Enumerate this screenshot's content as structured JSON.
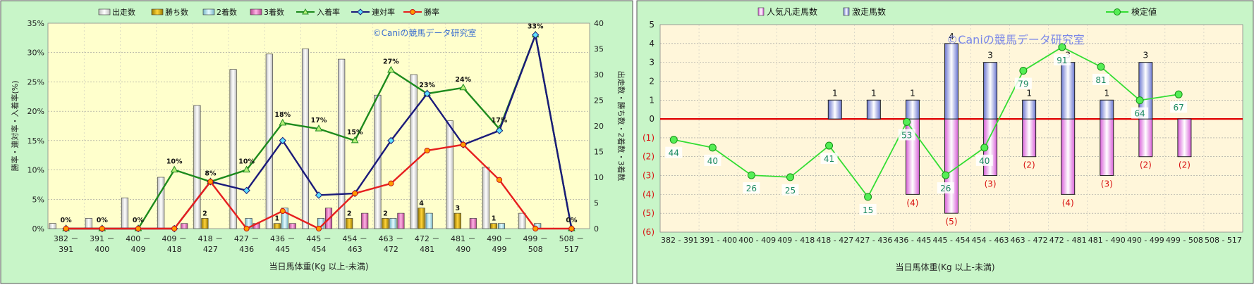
{
  "chart_data": [
    {
      "type": "bar-line-combo",
      "categories": [
        "382－391",
        "391－400",
        "400－409",
        "409－418",
        "418－427",
        "427－436",
        "436－445",
        "445－454",
        "454－463",
        "463－472",
        "472－481",
        "481－490",
        "490－499",
        "499－508",
        "508－517"
      ],
      "xlabel": "当日馬体重(Kg  以上-未満)",
      "ylabel_left": "勝率・連対率・入着率(%)",
      "ylabel_right": "出走数・勝ち数・2着数・3着数",
      "ylim_left": [
        0,
        35
      ],
      "ylim_right": [
        0,
        40
      ],
      "yticks_left": [
        "0%",
        "5%",
        "10%",
        "15%",
        "20%",
        "25%",
        "30%",
        "35%"
      ],
      "yticks_right": [
        "0",
        "5",
        "10",
        "15",
        "20",
        "25",
        "30",
        "35",
        "40"
      ],
      "watermark": "©Caniの競馬データ研究室",
      "legend_position": "top",
      "series": [
        {
          "name": "出走数",
          "kind": "bar",
          "axis": "right",
          "color": "#ffffff",
          "values": [
            1,
            2,
            6,
            10,
            24,
            31,
            34,
            35,
            33,
            26,
            30,
            21,
            12,
            3,
            0
          ]
        },
        {
          "name": "勝ち数",
          "kind": "bar",
          "axis": "right",
          "color": "#e8b80c",
          "values": [
            0,
            0,
            0,
            0,
            2,
            0,
            1,
            0,
            2,
            2,
            4,
            3,
            1,
            0,
            0
          ]
        },
        {
          "name": "2着数",
          "kind": "bar",
          "axis": "right",
          "color": "#c6f0fa",
          "values": [
            0,
            0,
            0,
            0,
            0,
            2,
            4,
            2,
            0,
            2,
            3,
            0,
            1,
            1,
            0
          ]
        },
        {
          "name": "3着数",
          "kind": "bar",
          "axis": "right",
          "color": "#f07ec8",
          "values": [
            0,
            0,
            0,
            1,
            0,
            1,
            1,
            4,
            3,
            3,
            0,
            2,
            0,
            0,
            0
          ]
        },
        {
          "name": "入着率",
          "kind": "line",
          "axis": "left",
          "color": "#1d8a1d",
          "marker": "triangle",
          "values": [
            0,
            0,
            0,
            10,
            8,
            10,
            18,
            17,
            15,
            27,
            23,
            24,
            17,
            33,
            0
          ]
        },
        {
          "name": "連対率",
          "kind": "line",
          "axis": "left",
          "color": "#1a1a7a",
          "marker": "diamond",
          "values": [
            0,
            0,
            0,
            0,
            8,
            6.5,
            15,
            5.7,
            6,
            15,
            23,
            14.3,
            16.7,
            33,
            0
          ]
        },
        {
          "name": "勝率",
          "kind": "line",
          "axis": "left",
          "color": "#e61e1e",
          "marker": "circle",
          "values": [
            0,
            0,
            0,
            0,
            8,
            0,
            3,
            0,
            6,
            7.7,
            13.3,
            14.3,
            8.3,
            0,
            0
          ]
        }
      ],
      "data_labels": {
        "入着率": [
          "0%",
          "0%",
          "0%",
          "10%",
          "8%",
          "10%",
          "18%",
          "17%",
          "15%",
          "27%",
          "23%",
          "24%",
          "17%",
          "33%",
          "0%"
        ],
        "勝ち数": [
          "",
          "",
          "",
          "",
          "2",
          "",
          "1",
          "",
          "2",
          "2",
          "4",
          "3",
          "1",
          "",
          ""
        ]
      }
    },
    {
      "type": "bar-line-combo",
      "categories": [
        "382 - 391",
        "391 - 400",
        "400 - 409",
        "409 - 418",
        "418 - 427",
        "427 - 436",
        "436 - 445",
        "445 - 454",
        "454 - 463",
        "463 - 472",
        "472 - 481",
        "481 - 490",
        "490 - 499",
        "499 - 508",
        "508 - 517"
      ],
      "xlabel": "当日馬体重(Kg  以上-未満)",
      "ylim": [
        -6,
        5
      ],
      "yticks": [
        "5",
        "4",
        "3",
        "2",
        "1",
        "0",
        "(1)",
        "(2)",
        "(3)",
        "(4)",
        "(5)",
        "(6)"
      ],
      "watermark": "©Caniの競馬データ研究室",
      "legend_position": "top",
      "series": [
        {
          "name": "人気凡走馬数",
          "kind": "bar",
          "color": "#f0a0f0",
          "values": [
            0,
            0,
            0,
            0,
            0,
            0,
            -4,
            -5,
            -3,
            -2,
            -4,
            -3,
            -2,
            -2,
            0
          ]
        },
        {
          "name": "激走馬数",
          "kind": "bar",
          "color": "#a8b4f4",
          "values": [
            0,
            0,
            0,
            0,
            1,
            1,
            1,
            4,
            3,
            1,
            3,
            1,
            3,
            0,
            0
          ]
        },
        {
          "name": "検定値",
          "kind": "line",
          "color": "#33dd33",
          "marker": "circle",
          "values": [
            44,
            40,
            26,
            25,
            41,
            15,
            53,
            26,
            40,
            79,
            91,
            81,
            64,
            67,
            null
          ]
        }
      ],
      "positive_labels": [
        "",
        "",
        "",
        "",
        "1",
        "1",
        "1",
        "4",
        "3",
        "1",
        "3",
        "1",
        "3",
        "",
        ""
      ],
      "negative_labels": [
        "",
        "",
        "",
        "",
        "",
        "",
        "(4)",
        "(5)",
        "(3)",
        "(2)",
        "(4)",
        "(3)",
        "(2)",
        "(2)",
        ""
      ],
      "value_labels": [
        "44",
        "40",
        "26",
        "25",
        "41",
        "15",
        "53",
        "26",
        "40",
        "79",
        "91",
        "81",
        "64",
        "67",
        ""
      ]
    }
  ]
}
